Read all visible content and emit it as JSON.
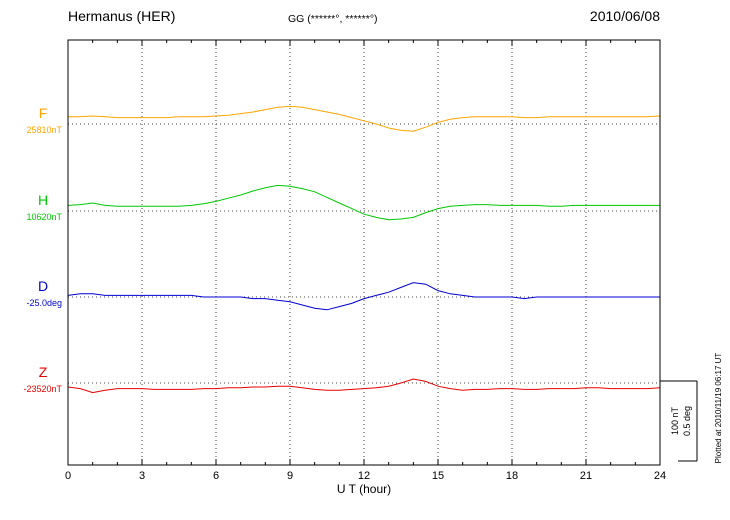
{
  "header": {
    "station": "Hermanus (HER)",
    "coords": "GG (******°, ******°)",
    "date": "2010/06/08"
  },
  "axis": {
    "xlabel": "U T (hour)"
  },
  "side": {
    "scale_nt": "100 nT",
    "scale_deg": "0.5 deg",
    "plotted": "Plotted at 2010/11/19 06:17 UT"
  },
  "chart_data": {
    "type": "line",
    "title": "Hermanus (HER) magnetogram",
    "date": "2010/06/08",
    "xlabel": "U T (hour)",
    "xlim": [
      0,
      24
    ],
    "x_ticks": [
      0,
      3,
      6,
      9,
      12,
      15,
      18,
      21,
      24
    ],
    "sample_interval_hours": 0.5,
    "values_note": "values are offsets from each component baseline, in the series units",
    "grid": "dotted vertical lines every 3 h; dotted horizontal baseline per component",
    "scale_bar": {
      "nT": 100,
      "deg": 0.5
    },
    "series": [
      {
        "name": "F",
        "color": "#FFA500",
        "units": "nT",
        "baseline": 25810,
        "baseline_label": "25810nT",
        "values": [
          9,
          9,
          10,
          9,
          8,
          8,
          8,
          8,
          8,
          9,
          9,
          9,
          10,
          11,
          13,
          15,
          18,
          21,
          22,
          21,
          18,
          15,
          12,
          8,
          4,
          0,
          -5,
          -8,
          -9,
          -4,
          2,
          6,
          8,
          9,
          9,
          9,
          9,
          8,
          8,
          9,
          9,
          9,
          9,
          9,
          9,
          9,
          9,
          9,
          10
        ]
      },
      {
        "name": "H",
        "color": "#00C800",
        "units": "nT",
        "baseline": 10620,
        "baseline_label": "10620nT",
        "values": [
          7,
          8,
          10,
          7,
          6,
          6,
          6,
          6,
          6,
          6,
          7,
          9,
          12,
          16,
          20,
          25,
          29,
          32,
          31,
          28,
          24,
          17,
          10,
          3,
          -4,
          -8,
          -11,
          -10,
          -8,
          -2,
          3,
          6,
          7,
          8,
          8,
          7,
          7,
          7,
          7,
          6,
          6,
          7,
          7,
          7,
          7,
          7,
          7,
          7,
          7
        ]
      },
      {
        "name": "D",
        "color": "#0000D0",
        "units": "deg",
        "baseline": -25.0,
        "baseline_label": "-25.0deg",
        "values": [
          0.01,
          0.02,
          0.02,
          0.01,
          0.01,
          0.01,
          0.01,
          0.01,
          0.01,
          0.01,
          0.01,
          0,
          0,
          0,
          0,
          -0.01,
          -0.01,
          -0.02,
          -0.03,
          -0.05,
          -0.07,
          -0.08,
          -0.06,
          -0.04,
          -0.01,
          0.01,
          0.03,
          0.06,
          0.09,
          0.08,
          0.04,
          0.02,
          0.01,
          0,
          0,
          0,
          0,
          -0.01,
          0,
          0,
          0,
          0,
          0,
          0,
          0,
          0,
          0,
          0,
          0
        ]
      },
      {
        "name": "Z",
        "color": "#E80000",
        "units": "nT",
        "baseline": -23520,
        "baseline_label": "-23520nT",
        "values": [
          -5,
          -7,
          -12,
          -9,
          -7,
          -7,
          -7,
          -8,
          -8,
          -8,
          -8,
          -7,
          -7,
          -6,
          -6,
          -5,
          -5,
          -4,
          -4,
          -6,
          -8,
          -9,
          -9,
          -8,
          -7,
          -6,
          -4,
          0,
          5,
          2,
          -4,
          -7,
          -9,
          -8,
          -8,
          -7,
          -7,
          -8,
          -8,
          -7,
          -7,
          -7,
          -6,
          -6,
          -7,
          -7,
          -7,
          -7,
          -6
        ]
      }
    ]
  }
}
